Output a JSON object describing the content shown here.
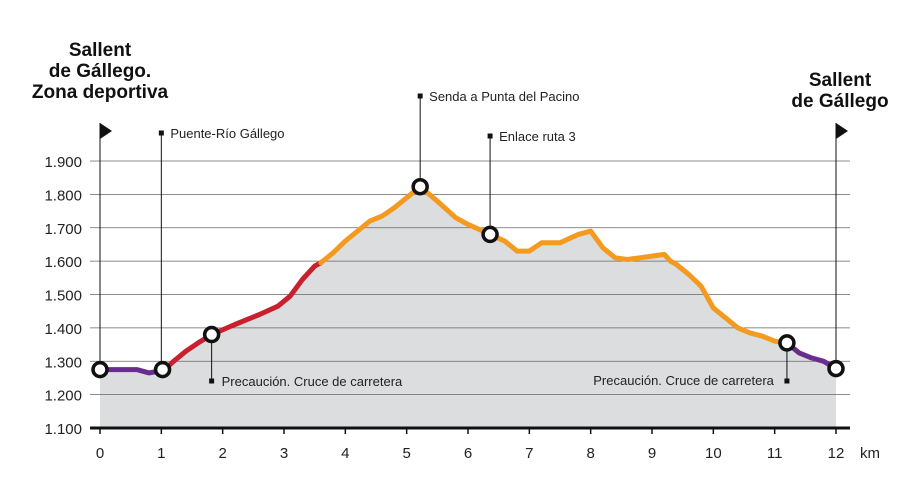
{
  "start_label": [
    "Sallent",
    "de Gállego.",
    "Zona deportiva"
  ],
  "end_label": [
    "Sallent",
    "de Gállego"
  ],
  "colors": {
    "purple": "#6a2d8f",
    "red": "#c8202e",
    "orange": "#f39a1f",
    "fill": "#dcdddf",
    "grid": "#666666",
    "axis": "#111111"
  },
  "chart_data": {
    "type": "area",
    "title": "",
    "xlabel": "",
    "ylabel": "",
    "x_unit": "km",
    "xlim": [
      0,
      12
    ],
    "ylim": [
      1100,
      1900
    ],
    "x_ticks": [
      0,
      1,
      2,
      3,
      4,
      5,
      6,
      7,
      8,
      9,
      10,
      11,
      12
    ],
    "x_tick_labels": [
      "0",
      "1",
      "2",
      "3",
      "4",
      "5",
      "6",
      "7",
      "8",
      "9",
      "10",
      "11",
      "12"
    ],
    "y_ticks": [
      1100,
      1200,
      1300,
      1400,
      1500,
      1600,
      1700,
      1800,
      1900
    ],
    "y_tick_labels": [
      "1.100",
      "1.200",
      "1.300",
      "1.400",
      "1.500",
      "1.600",
      "1.700",
      "1.800",
      "1.900"
    ],
    "grid": true,
    "series": [
      {
        "color": "#6a2d8f",
        "x": [
          0,
          0.3,
          0.6,
          0.8,
          0.95,
          1.05
        ],
        "y": [
          1275,
          1275,
          1275,
          1265,
          1270,
          1275
        ]
      },
      {
        "color": "#c8202e",
        "x": [
          1.05,
          1.2,
          1.4,
          1.6,
          1.82,
          2.2,
          2.6,
          2.9,
          3.1,
          3.3,
          3.5,
          3.6
        ],
        "y": [
          1275,
          1300,
          1330,
          1355,
          1380,
          1410,
          1440,
          1465,
          1495,
          1545,
          1585,
          1595
        ]
      },
      {
        "color": "#f39a1f",
        "x": [
          3.6,
          3.8,
          4.0,
          4.2,
          4.4,
          4.6,
          4.8,
          5.0,
          5.22,
          5.5,
          5.8,
          6.0,
          6.36,
          6.6,
          6.8,
          7.0,
          7.2,
          7.5,
          7.8,
          8.0,
          8.2,
          8.4,
          8.6,
          8.8,
          9.0,
          9.2,
          9.3,
          9.4,
          9.6,
          9.8,
          10.0,
          10.2,
          10.4,
          10.6,
          10.8,
          11.0,
          11.2
        ],
        "y": [
          1595,
          1625,
          1660,
          1690,
          1720,
          1735,
          1760,
          1790,
          1823,
          1780,
          1730,
          1710,
          1680,
          1660,
          1630,
          1630,
          1655,
          1655,
          1680,
          1690,
          1640,
          1610,
          1605,
          1610,
          1615,
          1620,
          1600,
          1590,
          1560,
          1525,
          1460,
          1430,
          1400,
          1385,
          1375,
          1360,
          1355
        ]
      },
      {
        "color": "#6a2d8f",
        "x": [
          11.2,
          11.4,
          11.6,
          11.8,
          12.0
        ],
        "y": [
          1355,
          1325,
          1310,
          1300,
          1278
        ]
      }
    ],
    "waypoints": [
      {
        "x": 0,
        "y": 1275
      },
      {
        "x": 1.02,
        "y": 1275
      },
      {
        "x": 1.82,
        "y": 1380
      },
      {
        "x": 5.22,
        "y": 1823
      },
      {
        "x": 6.36,
        "y": 1680
      },
      {
        "x": 11.2,
        "y": 1355
      },
      {
        "x": 12.0,
        "y": 1278
      }
    ],
    "annotations": [
      {
        "text": "Puente-Río Gállego",
        "x": 1.0,
        "position": "top"
      },
      {
        "text": "Precaución. Cruce de carretera",
        "x": 1.82,
        "position": "bottom",
        "anchor": "start"
      },
      {
        "text": "Senda a Punta del Pacino",
        "x": 5.22,
        "position": "top"
      },
      {
        "text": "Enlace ruta 3",
        "x": 6.36,
        "position": "top"
      },
      {
        "text": "Precaución. Cruce de carretera",
        "x": 11.2,
        "position": "bottom",
        "anchor": "end"
      }
    ]
  }
}
